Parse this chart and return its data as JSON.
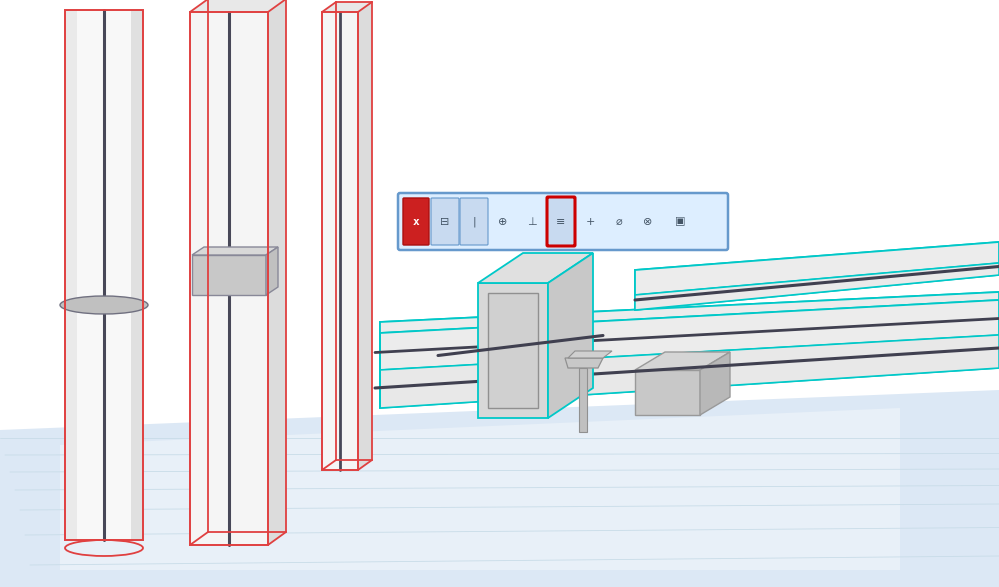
{
  "bg_color": "#ffffff",
  "floor_color": "#dce8f5",
  "floor_color2": "#e8f0f8",
  "column_face_light": "#f5f5f5",
  "column_face_mid": "#e8e8e8",
  "column_face_dark": "#d8d8d8",
  "column_edge_red": "#e04040",
  "column_axis_color": "#484858",
  "beam_face_top": "#f0f0f0",
  "beam_face_front": "#e4e4e4",
  "beam_face_inner": "#ececec",
  "beam_edge_cyan": "#00c8c8",
  "beam_axis_color": "#404050",
  "toolbar_bg": "#ddeeff",
  "toolbar_border": "#6699cc",
  "toolbar_highlight": "#c8daf0",
  "toolbar_selected_border": "#cc0000",
  "icon_color": "#445566",
  "close_bg": "#cc2020",
  "disk_face": "#c0c0c0",
  "disk_edge": "#707080",
  "plate_face": "#c8c8c8",
  "plate_edge": "#888898",
  "joint_face": "#c0c0c0",
  "joint_edge": "#888898"
}
